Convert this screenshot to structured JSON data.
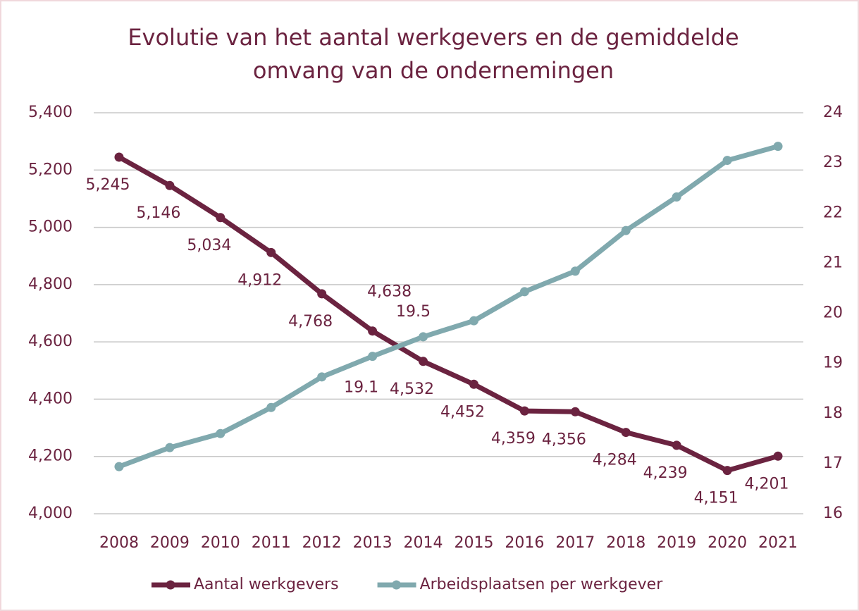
{
  "chart_data": {
    "type": "line",
    "title": [
      "Evolutie van het aantal werkgevers en de gemiddelde",
      "omvang van de ondernemingen"
    ],
    "categories": [
      "2008",
      "2009",
      "2010",
      "2011",
      "2012",
      "2013",
      "2014",
      "2015",
      "2016",
      "2017",
      "2018",
      "2019",
      "2020",
      "2021"
    ],
    "series": [
      {
        "name": "Aantal werkgevers",
        "color": "#6b2340",
        "axis": "y",
        "values": [
          5245,
          5146,
          5034,
          4912,
          4768,
          4638,
          4532,
          4452,
          4359,
          4356,
          4284,
          4239,
          4151,
          4201
        ],
        "value_labels": [
          "5,245",
          "5,146",
          "5,034",
          "4,912",
          "4,768",
          "4,638",
          "4,532",
          "4,452",
          "4,359",
          "4,356",
          "4,284",
          "4,239",
          "4,151",
          "4,201"
        ]
      },
      {
        "name": "Arbeidsplaatsen per werkgever",
        "color": "#80a9ae",
        "axis": "y2",
        "values": [
          16.94,
          17.32,
          17.6,
          18.12,
          18.73,
          19.14,
          19.53,
          19.85,
          20.43,
          20.84,
          21.65,
          22.32,
          23.05,
          23.33
        ],
        "value_labels": [
          null,
          null,
          null,
          null,
          null,
          "19.1",
          "19.5",
          null,
          null,
          null,
          null,
          null,
          null,
          null
        ]
      }
    ],
    "ylim": [
      4000,
      5400
    ],
    "yticks": [
      {
        "value": 4000,
        "label": "4,000"
      },
      {
        "value": 4200,
        "label": "4,200"
      },
      {
        "value": 4400,
        "label": "4,400"
      },
      {
        "value": 4600,
        "label": "4,600"
      },
      {
        "value": 4800,
        "label": "4,800"
      },
      {
        "value": 5000,
        "label": "5,000"
      },
      {
        "value": 5200,
        "label": "5,200"
      },
      {
        "value": 5400,
        "label": "5,400"
      }
    ],
    "y2lim": [
      16,
      24
    ],
    "y2ticks": [
      16,
      17,
      18,
      19,
      20,
      21,
      22,
      23,
      24
    ],
    "grid": true,
    "legend": "bottom"
  }
}
